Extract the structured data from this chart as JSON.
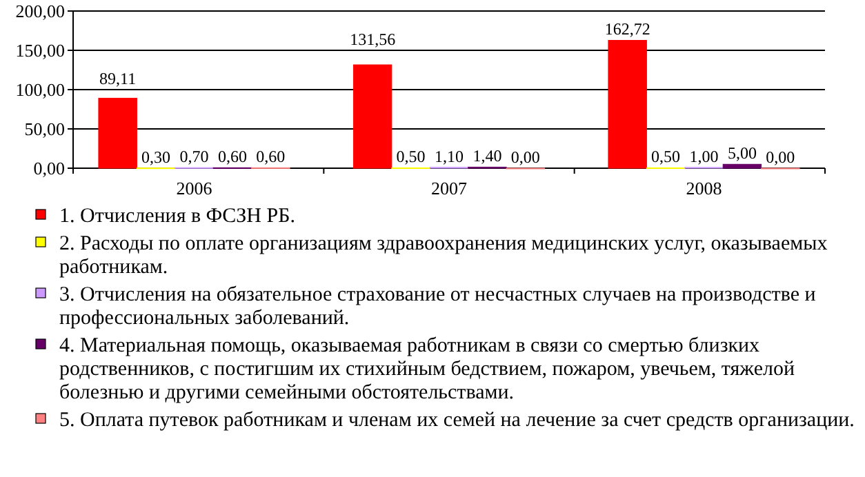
{
  "chart_data": {
    "type": "bar",
    "categories": [
      "2006",
      "2007",
      "2008"
    ],
    "series": [
      {
        "name": "1. Отчисления в ФСЗН РБ.",
        "color": "#ff0000",
        "values": [
          89.11,
          131.56,
          162.72
        ],
        "value_labels": [
          "89,11",
          "131,56",
          "162,72"
        ]
      },
      {
        "name": "2. Расходы по оплате организациям здравоохранения медицинских услуг, оказываемых работникам.",
        "color": "#ffff00",
        "values": [
          0.3,
          0.5,
          0.5
        ],
        "value_labels": [
          "0,30",
          "0,50",
          "0,50"
        ]
      },
      {
        "name": "3. Отчисления на обязательное страхование от несчастных случаев на производстве и профессиональных заболеваний.",
        "color": "#cc99ff",
        "values": [
          0.7,
          1.1,
          1.0
        ],
        "value_labels": [
          "0,70",
          "1,10",
          "1,00"
        ]
      },
      {
        "name": "4. Материальная помощь, оказываемая работникам в связи со смертью близких родственников, с постигшим их стихийным бедствием, пожаром, увечьем, тяжелой болезнью и другими семейными обстоятельствами.",
        "color": "#660066",
        "values": [
          0.6,
          1.4,
          5.0
        ],
        "value_labels": [
          "0,60",
          "1,40",
          "5,00"
        ]
      },
      {
        "name": "5. Оплата путевок работникам и членам их семей на лечение за счет средств организации.",
        "color": "#ff8080",
        "values": [
          0.6,
          0.0,
          0.0
        ],
        "value_labels": [
          "0,60",
          "0,00",
          "0,00"
        ]
      }
    ],
    "ylim": [
      0,
      200
    ],
    "yticks": [
      {
        "value": 0,
        "label": "0,00"
      },
      {
        "value": 50,
        "label": "50,00"
      },
      {
        "value": 100,
        "label": "100,00"
      },
      {
        "value": 150,
        "label": "150,00"
      },
      {
        "value": 200,
        "label": "200,00"
      }
    ],
    "grid": "y",
    "legend": "bottom"
  }
}
